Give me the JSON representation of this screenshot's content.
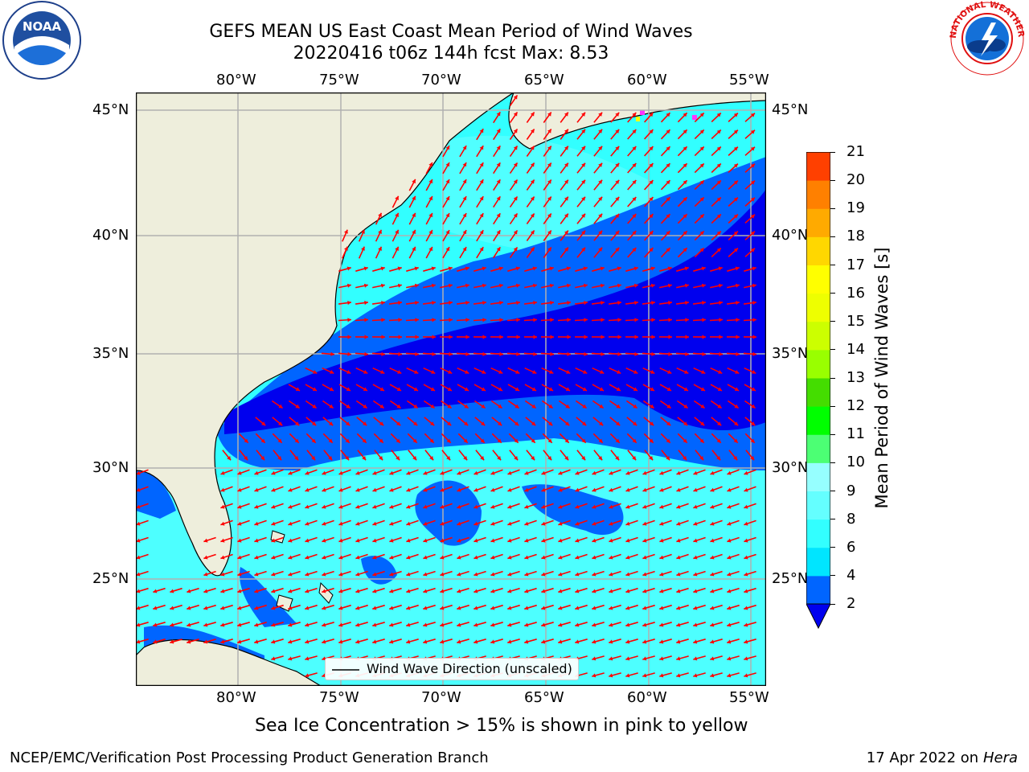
{
  "title": {
    "line1": "GEFS MEAN US East Coast Mean Period of Wind Waves",
    "line2": "20220416 t06z 144h fcst   Max: 8.53"
  },
  "axes": {
    "lon_labels": [
      "80°W",
      "75°W",
      "70°W",
      "65°W",
      "60°W",
      "55°W"
    ],
    "lat_labels": [
      "45°N",
      "40°N",
      "35°N",
      "30°N",
      "25°N"
    ]
  },
  "legend": {
    "label": "Wind Wave Direction (unscaled)"
  },
  "colorbar": {
    "label": "Mean Period of Wind Waves [s]",
    "ticks": [
      "2",
      "4",
      "6",
      "8",
      "9",
      "10",
      "11",
      "12",
      "13",
      "14",
      "15",
      "16",
      "17",
      "18",
      "19",
      "20",
      "21"
    ],
    "colors": [
      "#0065ff",
      "#00e5ff",
      "#32ffff",
      "#64ffff",
      "#96ffff",
      "#4cff74",
      "#00ff00",
      "#44dd00",
      "#99ff00",
      "#ccff00",
      "#eeff00",
      "#ffff00",
      "#ffd700",
      "#ffaa00",
      "#ff8000",
      "#ff4000",
      "#ff0000"
    ],
    "extend_color": "#0000ee"
  },
  "note": "Sea Ice Concentration > 15% is shown in pink to yellow",
  "footer": {
    "left": "NCEP/EMC/Verification Post Processing Product Generation Branch",
    "right_date": "17 Apr 2022 on",
    "right_machine": "Hera"
  },
  "logos": {
    "left": "NOAA",
    "right": "NATIONAL WEATHER SERVICE"
  },
  "colors": {
    "land": "#eeeedc",
    "ocean_light": "#32ffff",
    "ocean_mid": "#0065ff",
    "ocean_deep": "#0000ee",
    "arrow": "#ff0000",
    "grid": "#b0b0b0"
  }
}
